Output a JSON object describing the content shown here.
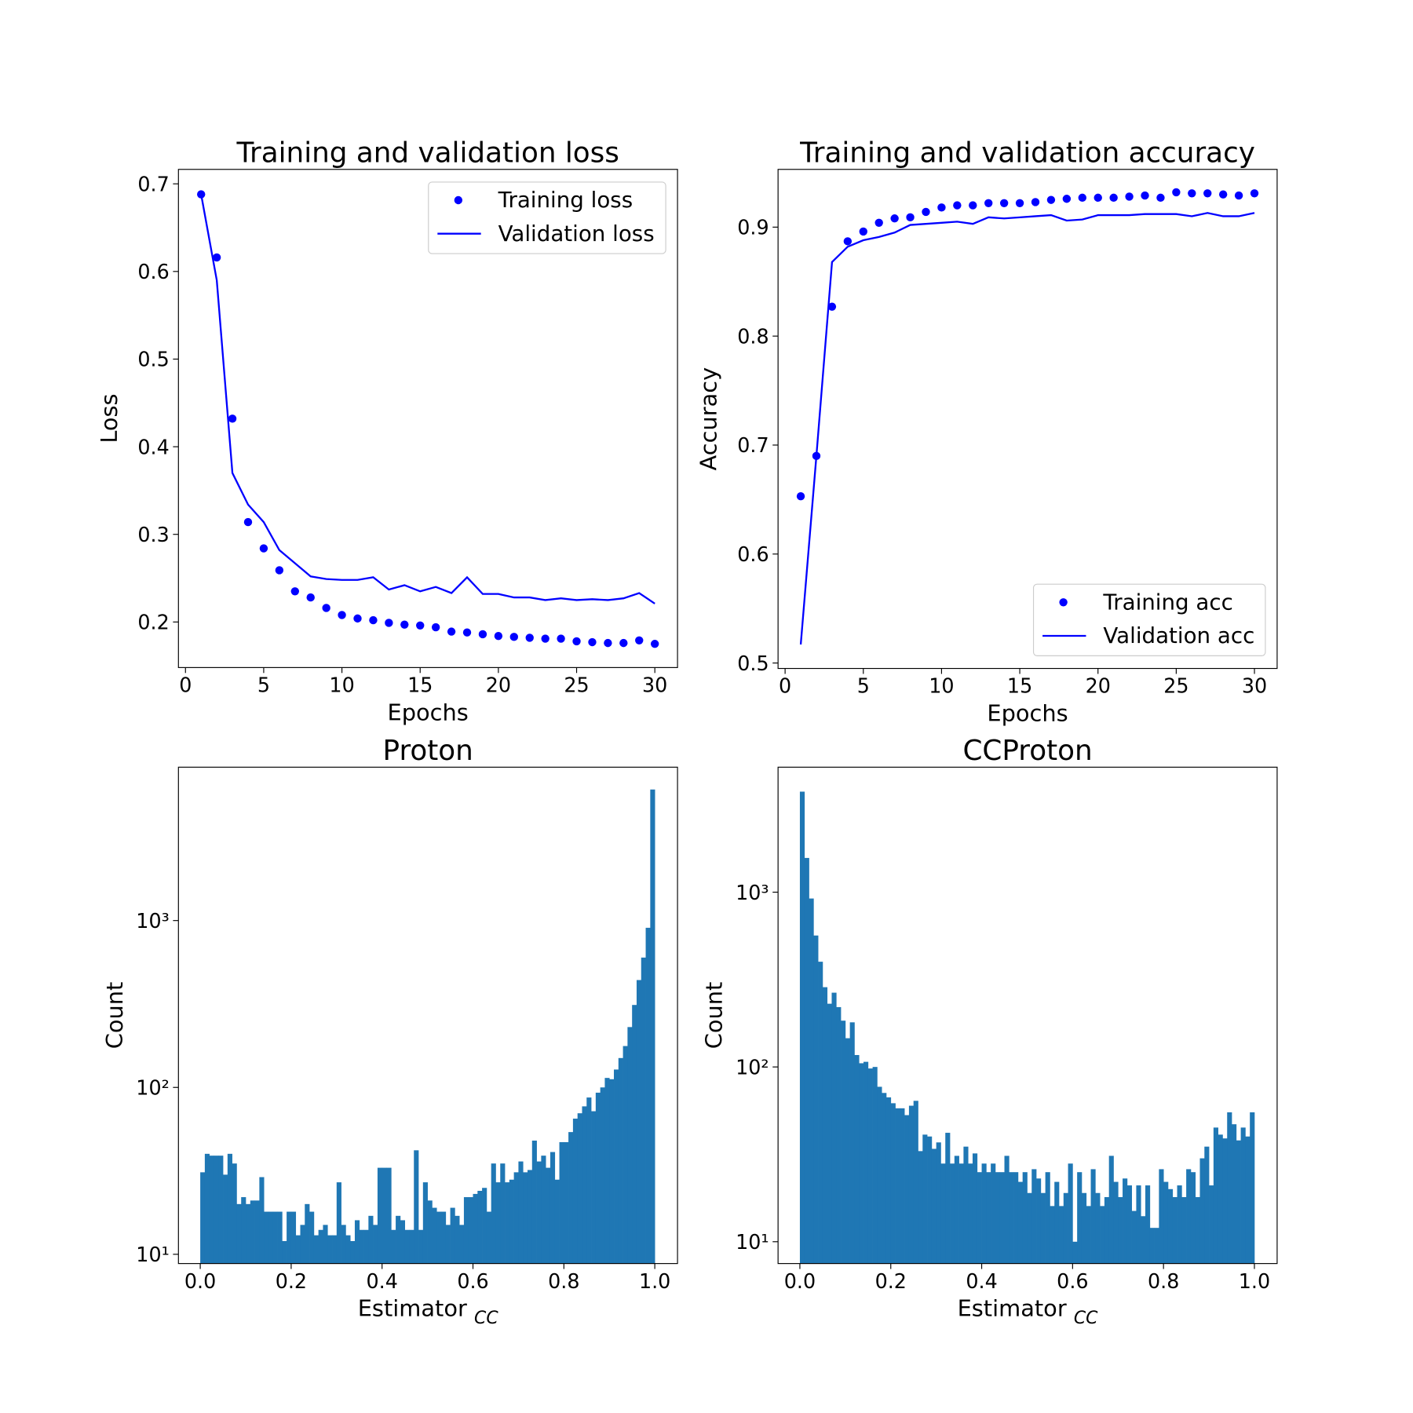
{
  "chart_data": [
    {
      "type": "line",
      "title": "Training and validation loss",
      "xlabel": "Epochs",
      "ylabel": "Loss",
      "x": [
        1,
        2,
        3,
        4,
        5,
        6,
        7,
        8,
        9,
        10,
        11,
        12,
        13,
        14,
        15,
        16,
        17,
        18,
        19,
        20,
        21,
        22,
        23,
        24,
        25,
        26,
        27,
        28,
        29,
        30
      ],
      "series": [
        {
          "name": "Training loss",
          "color": "#0000ff",
          "style": "dots",
          "values": [
            0.688,
            0.616,
            0.432,
            0.314,
            0.284,
            0.259,
            0.235,
            0.228,
            0.216,
            0.208,
            0.204,
            0.202,
            0.199,
            0.197,
            0.196,
            0.194,
            0.189,
            0.188,
            0.186,
            0.184,
            0.183,
            0.182,
            0.181,
            0.181,
            0.178,
            0.177,
            0.176,
            0.176,
            0.179,
            0.175
          ]
        },
        {
          "name": "Validation loss",
          "color": "#0000ff",
          "style": "line",
          "values": [
            0.688,
            0.59,
            0.37,
            0.334,
            0.314,
            0.282,
            0.267,
            0.252,
            0.249,
            0.248,
            0.248,
            0.251,
            0.237,
            0.242,
            0.235,
            0.24,
            0.233,
            0.251,
            0.232,
            0.232,
            0.228,
            0.228,
            0.225,
            0.227,
            0.225,
            0.226,
            0.225,
            0.227,
            0.233,
            0.221
          ]
        }
      ],
      "xlim": [
        -0.45,
        31.45
      ],
      "xticks": [
        0,
        5,
        10,
        15,
        20,
        25,
        30
      ],
      "ylim": [
        0.148,
        0.7165
      ],
      "yticks": [
        0.2,
        0.3,
        0.4,
        0.5,
        0.6,
        0.7
      ],
      "legend": "upper right"
    },
    {
      "type": "line",
      "title": "Training and validation accuracy",
      "xlabel": "Epochs",
      "ylabel": "Accuracy",
      "x": [
        1,
        2,
        3,
        4,
        5,
        6,
        7,
        8,
        9,
        10,
        11,
        12,
        13,
        14,
        15,
        16,
        17,
        18,
        19,
        20,
        21,
        22,
        23,
        24,
        25,
        26,
        27,
        28,
        29,
        30
      ],
      "series": [
        {
          "name": "Training acc",
          "color": "#0000ff",
          "style": "dots",
          "values": [
            0.653,
            0.69,
            0.827,
            0.887,
            0.896,
            0.904,
            0.908,
            0.909,
            0.914,
            0.918,
            0.92,
            0.92,
            0.922,
            0.922,
            0.922,
            0.923,
            0.925,
            0.926,
            0.927,
            0.927,
            0.927,
            0.928,
            0.929,
            0.927,
            0.932,
            0.931,
            0.931,
            0.93,
            0.929,
            0.931
          ]
        },
        {
          "name": "Validation acc",
          "color": "#0000ff",
          "style": "line",
          "values": [
            0.517,
            0.69,
            0.868,
            0.882,
            0.888,
            0.891,
            0.895,
            0.902,
            0.903,
            0.904,
            0.905,
            0.903,
            0.909,
            0.908,
            0.909,
            0.91,
            0.911,
            0.906,
            0.907,
            0.911,
            0.911,
            0.911,
            0.912,
            0.912,
            0.912,
            0.91,
            0.913,
            0.91,
            0.91,
            0.913
          ]
        }
      ],
      "xlim": [
        -0.45,
        31.45
      ],
      "xticks": [
        0,
        5,
        10,
        15,
        20,
        25,
        30
      ],
      "ylim": [
        0.495,
        0.953
      ],
      "yticks": [
        0.5,
        0.6,
        0.7,
        0.8,
        0.9
      ],
      "legend": "lower right"
    },
    {
      "type": "histogram",
      "title": "Proton",
      "xlabel": "Estimator",
      "xlabel_subscript": "CC",
      "ylabel": "Count",
      "color": "#1f77b4",
      "yscale": "log",
      "bins": [
        0,
        0.01,
        0.02,
        0.03,
        0.04,
        0.05,
        0.06,
        0.07,
        0.08,
        0.09,
        0.1,
        0.11,
        0.12,
        0.13,
        0.14,
        0.15,
        0.16,
        0.17,
        0.18,
        0.19,
        0.2,
        0.21,
        0.22,
        0.23,
        0.24,
        0.25,
        0.26,
        0.27,
        0.28,
        0.29,
        0.3,
        0.31,
        0.32,
        0.33,
        0.34,
        0.35,
        0.36,
        0.37,
        0.38,
        0.39,
        0.4,
        0.41,
        0.42,
        0.43,
        0.44,
        0.45,
        0.46,
        0.47,
        0.48,
        0.49,
        0.5,
        0.51,
        0.52,
        0.53,
        0.54,
        0.55,
        0.56,
        0.57,
        0.58,
        0.59,
        0.6,
        0.61,
        0.62,
        0.63,
        0.64,
        0.65,
        0.66,
        0.67,
        0.68,
        0.69,
        0.7,
        0.71,
        0.72,
        0.73,
        0.74,
        0.75,
        0.76,
        0.77,
        0.78,
        0.79,
        0.8,
        0.81,
        0.82,
        0.83,
        0.84,
        0.85,
        0.86,
        0.87,
        0.88,
        0.89,
        0.9,
        0.91,
        0.92,
        0.93,
        0.94,
        0.95,
        0.96,
        0.97,
        0.98,
        0.99,
        1
      ],
      "values": [
        31,
        40,
        39,
        39,
        39,
        30,
        40,
        35,
        20,
        22,
        20,
        21,
        21,
        29,
        18,
        18,
        18,
        18,
        12,
        18,
        18,
        13,
        15,
        20,
        18,
        13,
        14,
        15,
        13,
        13,
        27,
        15,
        13,
        12,
        16,
        14,
        14,
        17,
        15,
        33,
        33,
        33,
        14,
        17,
        16,
        14,
        14,
        42,
        14,
        27,
        21,
        19,
        18,
        18,
        15,
        19,
        17,
        15,
        22,
        22,
        23,
        24,
        25,
        18,
        35,
        27,
        35,
        27,
        28,
        31,
        36,
        31,
        32,
        48,
        36,
        39,
        33,
        41,
        28,
        47,
        47,
        54,
        65,
        70,
        77,
        87,
        72,
        93,
        100,
        114,
        112,
        128,
        150,
        177,
        230,
        312,
        440,
        600,
        905,
        6100
      ],
      "xlim": [
        -0.048,
        1.05
      ],
      "xticks": [
        {
          "value": 0,
          "label": "0.0"
        },
        0.2,
        0.4,
        0.6,
        0.8,
        {
          "value": 1,
          "label": "1.0"
        }
      ],
      "ylim": [
        8.8,
        8300
      ],
      "yticks": [
        {
          "value": 10,
          "label": "10¹"
        },
        {
          "value": 100,
          "label": "10²"
        },
        {
          "value": 1000,
          "label": "10³"
        }
      ]
    },
    {
      "type": "histogram",
      "title": "CCProton",
      "xlabel": "Estimator",
      "xlabel_subscript": "CC",
      "ylabel": "Count",
      "color": "#1f77b4",
      "yscale": "log",
      "bins": [
        0,
        0.01,
        0.02,
        0.03,
        0.04,
        0.05,
        0.06,
        0.07,
        0.08,
        0.09,
        0.1,
        0.11,
        0.12,
        0.13,
        0.14,
        0.15,
        0.16,
        0.17,
        0.18,
        0.19,
        0.2,
        0.21,
        0.22,
        0.23,
        0.24,
        0.25,
        0.26,
        0.27,
        0.28,
        0.29,
        0.3,
        0.31,
        0.32,
        0.33,
        0.34,
        0.35,
        0.36,
        0.37,
        0.38,
        0.39,
        0.4,
        0.41,
        0.42,
        0.43,
        0.44,
        0.45,
        0.46,
        0.47,
        0.48,
        0.49,
        0.5,
        0.51,
        0.52,
        0.53,
        0.54,
        0.55,
        0.56,
        0.57,
        0.58,
        0.59,
        0.6,
        0.61,
        0.62,
        0.63,
        0.64,
        0.65,
        0.66,
        0.67,
        0.68,
        0.69,
        0.7,
        0.71,
        0.72,
        0.73,
        0.74,
        0.75,
        0.76,
        0.77,
        0.78,
        0.79,
        0.8,
        0.81,
        0.82,
        0.83,
        0.84,
        0.85,
        0.86,
        0.87,
        0.88,
        0.89,
        0.9,
        0.91,
        0.92,
        0.93,
        0.94,
        0.95,
        0.96,
        0.97,
        0.98,
        0.99,
        1
      ],
      "values": [
        3760,
        1570,
        920,
        565,
        400,
        286,
        230,
        266,
        220,
        184,
        146,
        180,
        117,
        105,
        107,
        98,
        100,
        77,
        71,
        67,
        62,
        58,
        58,
        53,
        60,
        64,
        33,
        41,
        40,
        34,
        37,
        28,
        42,
        28,
        31,
        28,
        35,
        28,
        32,
        25,
        28,
        25,
        28,
        25,
        25,
        31,
        25,
        25,
        22,
        25,
        19,
        26,
        23,
        19,
        25,
        16,
        22,
        16,
        19,
        28,
        10,
        25,
        19,
        16,
        26,
        19,
        16,
        18,
        31,
        22,
        18,
        23,
        21,
        15,
        21,
        14,
        21,
        12,
        12,
        26,
        22,
        20,
        18,
        21,
        18,
        26,
        25,
        18,
        30,
        35,
        21,
        45,
        41,
        39,
        55,
        47,
        38,
        45,
        40,
        55
      ],
      "xlim": [
        -0.048,
        1.05
      ],
      "xticks": [
        {
          "value": 0,
          "label": "0.0"
        },
        0.2,
        0.4,
        0.6,
        0.8,
        {
          "value": 1,
          "label": "1.0"
        }
      ],
      "ylim": [
        7.5,
        5190
      ],
      "yticks": [
        {
          "value": 10,
          "label": "10¹"
        },
        {
          "value": 100,
          "label": "10²"
        },
        {
          "value": 1000,
          "label": "10³"
        }
      ]
    }
  ]
}
